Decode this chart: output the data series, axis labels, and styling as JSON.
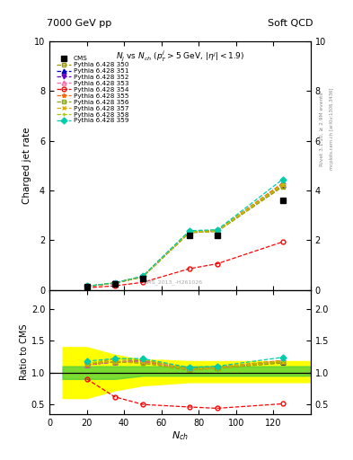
{
  "title_top_left": "7000 GeV pp",
  "title_top_right": "Soft QCD",
  "plot_title": "$N_j$ vs $N_{ch}$ ($p_T^j$$>$5 GeV, $|\\eta^j|$$<$1.9)",
  "ylabel_main": "Charged jet rate",
  "ylabel_ratio": "Ratio to CMS",
  "xlabel": "$N_{ch}$",
  "rivet_label": "Rivet 3.1.10, ≥ 2.9M events",
  "arxiv_label": "mcplots.cern.ch [arXiv:1306.3436]",
  "watermark": "CMS_2013_-H261026",
  "cms_x": [
    20,
    35,
    50,
    75,
    90,
    125
  ],
  "cms_y": [
    0.12,
    0.23,
    0.45,
    2.2,
    2.2,
    3.6
  ],
  "nch": [
    20,
    35,
    50,
    75,
    90,
    125
  ],
  "pythia_data": [
    {
      "key": "350",
      "y": [
        0.14,
        0.27,
        0.52,
        2.3,
        2.35,
        4.15
      ],
      "ratio": [
        1.15,
        1.17,
        1.15,
        1.04,
        1.07,
        1.15
      ],
      "color": "#999900",
      "linestyle": "--",
      "marker": "s",
      "mfc": "none",
      "label": "Pythia 6.428 350"
    },
    {
      "key": "351",
      "y": [
        0.14,
        0.27,
        0.53,
        2.32,
        2.38,
        4.2
      ],
      "ratio": [
        1.12,
        1.17,
        1.18,
        1.06,
        1.08,
        1.17
      ],
      "color": "#0000cc",
      "linestyle": "--",
      "marker": "^",
      "mfc": "#0000cc",
      "label": "Pythia 6.428 351"
    },
    {
      "key": "352",
      "y": [
        0.14,
        0.27,
        0.53,
        2.33,
        2.38,
        4.22
      ],
      "ratio": [
        1.12,
        1.17,
        1.18,
        1.06,
        1.08,
        1.17
      ],
      "color": "#6600cc",
      "linestyle": "--",
      "marker": "v",
      "mfc": "#6600cc",
      "label": "Pythia 6.428 352"
    },
    {
      "key": "353",
      "y": [
        0.14,
        0.27,
        0.53,
        2.33,
        2.38,
        4.28
      ],
      "ratio": [
        1.12,
        1.17,
        1.18,
        1.06,
        1.08,
        1.19
      ],
      "color": "#ff66aa",
      "linestyle": "--",
      "marker": "^",
      "mfc": "none",
      "label": "Pythia 6.428 353"
    },
    {
      "key": "354",
      "y": [
        0.08,
        0.16,
        0.3,
        0.85,
        1.05,
        1.93
      ],
      "ratio": [
        0.9,
        0.62,
        0.5,
        0.46,
        0.44,
        0.51
      ],
      "color": "#ff0000",
      "linestyle": "--",
      "marker": "o",
      "mfc": "none",
      "label": "Pythia 6.428 354"
    },
    {
      "key": "355",
      "y": [
        0.14,
        0.28,
        0.54,
        2.35,
        2.4,
        4.3
      ],
      "ratio": [
        1.12,
        1.22,
        1.2,
        1.07,
        1.09,
        1.19
      ],
      "color": "#ff6600",
      "linestyle": "--",
      "marker": "*",
      "mfc": "#ff6600",
      "label": "Pythia 6.428 355"
    },
    {
      "key": "356",
      "y": [
        0.14,
        0.27,
        0.52,
        2.3,
        2.36,
        4.18
      ],
      "ratio": [
        1.14,
        1.17,
        1.15,
        1.05,
        1.07,
        1.16
      ],
      "color": "#88aa00",
      "linestyle": "--",
      "marker": "s",
      "mfc": "none",
      "label": "Pythia 6.428 356"
    },
    {
      "key": "357",
      "y": [
        0.14,
        0.27,
        0.52,
        2.31,
        2.36,
        4.2
      ],
      "ratio": [
        1.14,
        1.17,
        1.16,
        1.05,
        1.07,
        1.17
      ],
      "color": "#ddaa00",
      "linestyle": "--",
      "marker": "x",
      "mfc": "#ddaa00",
      "label": "Pythia 6.428 357"
    },
    {
      "key": "358",
      "y": [
        0.14,
        0.28,
        0.54,
        2.34,
        2.39,
        4.25
      ],
      "ratio": [
        1.14,
        1.22,
        1.2,
        1.06,
        1.09,
        1.18
      ],
      "color": "#aacc00",
      "linestyle": "--",
      "marker": "+",
      "mfc": "#aacc00",
      "label": "Pythia 6.428 358"
    },
    {
      "key": "359",
      "y": [
        0.15,
        0.28,
        0.55,
        2.38,
        2.42,
        4.45
      ],
      "ratio": [
        1.18,
        1.22,
        1.22,
        1.08,
        1.1,
        1.24
      ],
      "color": "#00ccaa",
      "linestyle": "--",
      "marker": "D",
      "mfc": "#00ccaa",
      "label": "Pythia 6.428 359"
    }
  ],
  "band_x": [
    7,
    20,
    35,
    50,
    60,
    75,
    90,
    110,
    125,
    140
  ],
  "band_green_lo": [
    0.9,
    0.9,
    0.9,
    0.95,
    0.95,
    0.95,
    0.95,
    0.95,
    0.95,
    0.95
  ],
  "band_green_hi": [
    1.1,
    1.1,
    1.1,
    1.1,
    1.1,
    1.1,
    1.1,
    1.1,
    1.1,
    1.1
  ],
  "band_yellow_lo": [
    0.6,
    0.6,
    0.72,
    0.8,
    0.82,
    0.85,
    0.85,
    0.85,
    0.85,
    0.85
  ],
  "band_yellow_hi": [
    1.4,
    1.4,
    1.28,
    1.2,
    1.2,
    1.18,
    1.18,
    1.18,
    1.18,
    1.18
  ],
  "xlim": [
    7,
    140
  ],
  "ylim_main": [
    0,
    10
  ],
  "ylim_ratio": [
    0.35,
    2.3
  ],
  "yticks_main": [
    0,
    2,
    4,
    6,
    8,
    10
  ],
  "yticks_ratio": [
    0.5,
    1.0,
    1.5,
    2.0
  ]
}
